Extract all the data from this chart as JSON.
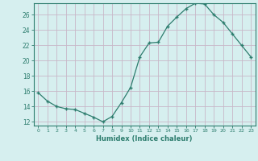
{
  "x": [
    0,
    1,
    2,
    3,
    4,
    5,
    6,
    7,
    8,
    9,
    10,
    11,
    12,
    13,
    14,
    15,
    16,
    17,
    18,
    19,
    20,
    21,
    22,
    23
  ],
  "y": [
    15.8,
    14.7,
    14.0,
    13.7,
    13.6,
    13.1,
    12.6,
    12.0,
    12.7,
    14.5,
    16.5,
    20.5,
    22.3,
    22.4,
    24.5,
    25.7,
    26.8,
    27.5,
    27.4,
    26.0,
    25.0,
    23.5,
    22.0,
    20.5
  ],
  "line_color": "#2d7d6e",
  "marker_color": "#2d7d6e",
  "bg_color": "#d6efef",
  "grid_color": "#c8b8c8",
  "axis_color": "#2d7d6e",
  "xlabel": "Humidex (Indice chaleur)",
  "ylim": [
    11.5,
    27.5
  ],
  "xlim": [
    -0.5,
    23.5
  ],
  "yticks": [
    12,
    14,
    16,
    18,
    20,
    22,
    24,
    26
  ],
  "xticks": [
    0,
    1,
    2,
    3,
    4,
    5,
    6,
    7,
    8,
    9,
    10,
    11,
    12,
    13,
    14,
    15,
    16,
    17,
    18,
    19,
    20,
    21,
    22,
    23
  ]
}
